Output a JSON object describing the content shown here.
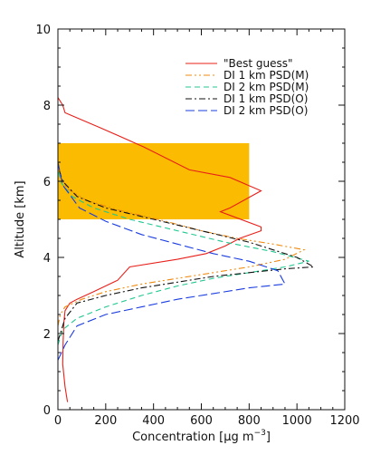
{
  "chart_data": {
    "type": "line",
    "xlabel_parts": [
      "Concentration ",
      "[",
      "μg m",
      "−3",
      "]"
    ],
    "ylabel": "Altitude [km]",
    "xlim": [
      0,
      1200
    ],
    "ylim": [
      0,
      10
    ],
    "x_ticks": [
      0,
      200,
      400,
      600,
      800,
      1000,
      1200
    ],
    "y_ticks": [
      0,
      2,
      4,
      6,
      8,
      10
    ],
    "x_tick_labels": [
      "0",
      "200",
      "400",
      "600",
      "800",
      "1000",
      "1200"
    ],
    "y_tick_labels": [
      "0",
      "2",
      "4",
      "6",
      "8",
      "10"
    ],
    "legend_position": "top-right",
    "shaded_region": {
      "x": [
        0,
        800
      ],
      "y": [
        5,
        7
      ],
      "color": "#FABB00"
    },
    "series": [
      {
        "name": "\"Best guess\"",
        "color": "#E8201A",
        "dash": "",
        "x": [
          40,
          30,
          20,
          22,
          25,
          30,
          50,
          80,
          150,
          250,
          300,
          500,
          620,
          700,
          760,
          850,
          850,
          680,
          720,
          850,
          720,
          550,
          360,
          180,
          30,
          20,
          0
        ],
        "y": [
          0.2,
          0.6,
          1.2,
          1.8,
          2.3,
          2.6,
          2.8,
          2.9,
          3.1,
          3.4,
          3.75,
          3.95,
          4.1,
          4.3,
          4.5,
          4.7,
          4.8,
          5.2,
          5.3,
          5.75,
          6.1,
          6.3,
          6.9,
          7.4,
          7.8,
          8.0,
          8.2
        ]
      },
      {
        "name": "DI 1 km PSD(M)",
        "color": "#F08A10",
        "dash": "7 3 2 3 2 3",
        "x": [
          0,
          10,
          30,
          100,
          200,
          350,
          500,
          650,
          800,
          950,
          1030,
          900,
          750,
          600,
          450,
          250,
          120,
          40,
          10,
          0
        ],
        "y": [
          2.2,
          2.5,
          2.7,
          2.9,
          3.1,
          3.3,
          3.45,
          3.6,
          3.75,
          3.95,
          4.2,
          4.35,
          4.5,
          4.7,
          4.95,
          5.25,
          5.5,
          5.8,
          6.1,
          6.4
        ]
      },
      {
        "name": "DI 2 km PSD(M)",
        "color": "#20C890",
        "dash": "6 4",
        "x": [
          0,
          20,
          80,
          200,
          350,
          500,
          650,
          800,
          950,
          1050,
          900,
          700,
          500,
          300,
          150,
          60,
          15,
          0
        ],
        "y": [
          1.7,
          2.1,
          2.4,
          2.7,
          3.0,
          3.25,
          3.45,
          3.6,
          3.75,
          3.9,
          4.15,
          4.4,
          4.7,
          5.0,
          5.3,
          5.6,
          5.95,
          6.3
        ]
      },
      {
        "name": "DI 1 km PSD(O)",
        "color": "#111111",
        "dash": "7 3 2 3",
        "x": [
          0,
          30,
          80,
          200,
          350,
          500,
          650,
          800,
          950,
          1070,
          1000,
          800,
          600,
          400,
          200,
          80,
          20,
          0
        ],
        "y": [
          1.8,
          2.4,
          2.8,
          3.0,
          3.2,
          3.35,
          3.5,
          3.6,
          3.7,
          3.75,
          4.0,
          4.4,
          4.7,
          5.0,
          5.3,
          5.6,
          6.0,
          6.4
        ]
      },
      {
        "name": "DI 2 km PSD(O)",
        "color": "#1A3CE0",
        "dash": "10 4",
        "x": [
          0,
          30,
          80,
          200,
          350,
          500,
          650,
          800,
          950,
          920,
          800,
          650,
          500,
          350,
          200,
          90,
          20,
          0
        ],
        "y": [
          1.3,
          1.7,
          2.2,
          2.5,
          2.7,
          2.9,
          3.05,
          3.2,
          3.3,
          3.65,
          3.9,
          4.1,
          4.35,
          4.6,
          4.95,
          5.3,
          5.9,
          6.5
        ]
      }
    ]
  }
}
